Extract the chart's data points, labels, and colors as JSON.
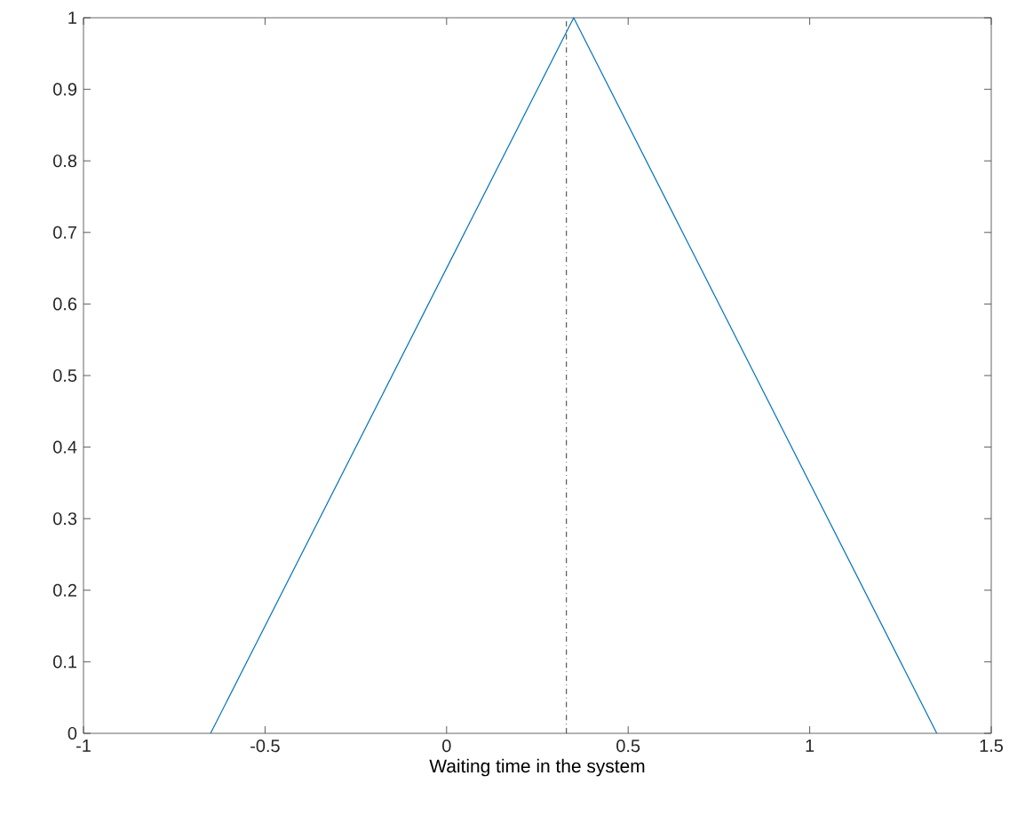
{
  "chart_data": {
    "type": "line",
    "xlabel": "Waiting time in the system",
    "x": [
      -0.65,
      0.35,
      1.35
    ],
    "series": [
      {
        "color": "#0072bd",
        "values": [
          0,
          1,
          0
        ]
      }
    ],
    "xlim": [
      -1,
      1.5
    ],
    "xticks": [
      -1,
      -0.5,
      0,
      0.5,
      1,
      1.5
    ],
    "ylim": [
      0,
      1
    ],
    "yticks": [
      0,
      0.1,
      0.2,
      0.3,
      0.4,
      0.5,
      0.6,
      0.7,
      0.8,
      0.9,
      1
    ],
    "ref_lines": [
      {
        "axis": "x",
        "value": 0.33,
        "color": "#333333",
        "line_style": "dashdot"
      }
    ],
    "grid": false
  }
}
